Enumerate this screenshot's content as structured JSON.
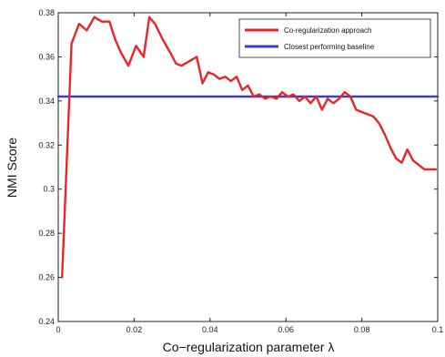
{
  "chart_data": {
    "type": "line",
    "xlabel": "Co−regularization parameter λ",
    "ylabel": "NMI Score",
    "xlim": [
      0,
      0.1
    ],
    "ylim": [
      0.24,
      0.38
    ],
    "x_ticks": [
      0,
      0.02,
      0.04,
      0.06,
      0.08,
      0.1
    ],
    "x_tick_labels": [
      "0",
      "0.02",
      "0.04",
      "0.06",
      "0.08",
      "0.1"
    ],
    "y_ticks": [
      0.24,
      0.26,
      0.28,
      0.3,
      0.32,
      0.34,
      0.36,
      0.38
    ],
    "y_tick_labels": [
      "0.24",
      "0.26",
      "0.28",
      "0.3",
      "0.32",
      "0.34",
      "0.36",
      "0.38"
    ],
    "grid": false,
    "legend_position": "top-right",
    "series": [
      {
        "name": "Co-regularization approach",
        "color": "#e8262a",
        "x": [
          0.001,
          0.0035,
          0.0055,
          0.0075,
          0.0095,
          0.0115,
          0.0135,
          0.015,
          0.0165,
          0.0185,
          0.0205,
          0.0225,
          0.024,
          0.0255,
          0.0275,
          0.0295,
          0.031,
          0.0325,
          0.0345,
          0.0365,
          0.038,
          0.0395,
          0.041,
          0.0425,
          0.044,
          0.0455,
          0.047,
          0.0485,
          0.05,
          0.0515,
          0.053,
          0.0545,
          0.056,
          0.0575,
          0.059,
          0.0605,
          0.062,
          0.0635,
          0.065,
          0.0665,
          0.068,
          0.0695,
          0.071,
          0.0725,
          0.074,
          0.0755,
          0.077,
          0.0785,
          0.08,
          0.0815,
          0.083,
          0.0845,
          0.086,
          0.0875,
          0.089,
          0.0905,
          0.092,
          0.0935,
          0.095,
          0.0965,
          0.098,
          0.0995
        ],
        "y": [
          0.26,
          0.366,
          0.375,
          0.372,
          0.378,
          0.376,
          0.376,
          0.368,
          0.362,
          0.356,
          0.365,
          0.36,
          0.378,
          0.375,
          0.368,
          0.362,
          0.357,
          0.356,
          0.358,
          0.36,
          0.348,
          0.353,
          0.352,
          0.35,
          0.351,
          0.349,
          0.351,
          0.345,
          0.347,
          0.342,
          0.343,
          0.341,
          0.342,
          0.341,
          0.344,
          0.342,
          0.343,
          0.34,
          0.342,
          0.339,
          0.342,
          0.336,
          0.341,
          0.339,
          0.341,
          0.344,
          0.342,
          0.336,
          0.335,
          0.334,
          0.333,
          0.33,
          0.325,
          0.319,
          0.314,
          0.312,
          0.318,
          0.313,
          0.311,
          0.309,
          0.309,
          0.309
        ]
      },
      {
        "name": "Closest performing baseline",
        "color": "#3b3bcc",
        "x": [
          0,
          0.1
        ],
        "y": [
          0.342,
          0.342
        ]
      }
    ]
  }
}
